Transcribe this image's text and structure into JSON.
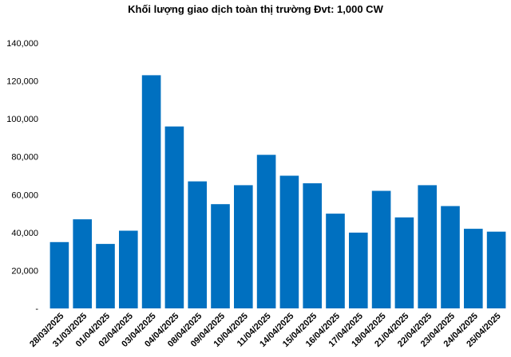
{
  "chart_data": {
    "type": "bar",
    "title": "Khối lượng giao dịch toàn thị trường Đvt: 1,000 CW",
    "xlabel": "",
    "ylabel": "",
    "ylim": [
      0,
      140000
    ],
    "grid": false,
    "y_ticks": [
      {
        "value": 0,
        "label": "-"
      },
      {
        "value": 20000,
        "label": "20,000"
      },
      {
        "value": 40000,
        "label": "40,000"
      },
      {
        "value": 60000,
        "label": "60,000"
      },
      {
        "value": 80000,
        "label": "80,000"
      },
      {
        "value": 100000,
        "label": "100,000"
      },
      {
        "value": 120000,
        "label": "120,000"
      },
      {
        "value": 140000,
        "label": "140,000"
      }
    ],
    "categories": [
      "28/03/2025",
      "31/03/2025",
      "01/04/2025",
      "02/04/2025",
      "03/04/2025",
      "04/04/2025",
      "08/04/2025",
      "09/04/2025",
      "10/04/2025",
      "11/04/2025",
      "14/04/2025",
      "15/04/2025",
      "16/04/2025",
      "17/04/2025",
      "18/04/2025",
      "21/04/2025",
      "22/04/2025",
      "23/04/2025",
      "24/04/2025",
      "25/04/2025"
    ],
    "values": [
      35000,
      47000,
      34000,
      41000,
      123000,
      96000,
      67000,
      55000,
      65000,
      81000,
      70000,
      66000,
      50000,
      40000,
      62000,
      48000,
      65000,
      54000,
      42000,
      40500
    ],
    "bar_color": "#0070C0"
  }
}
